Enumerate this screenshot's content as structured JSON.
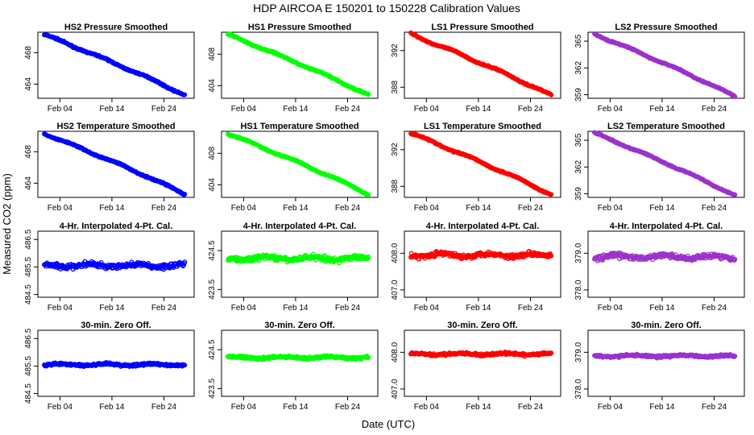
{
  "title": "HDP    AIRCOA E    150201 to 150228    Calibration Values",
  "xlabel": "Date (UTC)",
  "ylabel": "Measured CO2 (ppm)",
  "x_ticks": [
    "Feb 04",
    "Feb 14",
    "Feb 24"
  ],
  "colors": {
    "HS2": "#0000ff",
    "HS1": "#00ff00",
    "LS1": "#ff0000",
    "LS2": "#9a32cd"
  },
  "chart_data": [
    {
      "type": "scatter",
      "title": "HS2 Pressure Smoothed",
      "color": "HS2",
      "x_range": [
        "2015-02-01",
        "2015-02-28"
      ],
      "yticks": [
        "464",
        "468"
      ],
      "ylim": [
        462.2,
        470.6
      ],
      "y_start": 470.3,
      "y_end": 462.6,
      "noise": 0.08,
      "jitter": 0.1
    },
    {
      "type": "scatter",
      "title": "HS1 Pressure Smoothed",
      "color": "HS1",
      "x_range": [
        "2015-02-01",
        "2015-02-28"
      ],
      "yticks": [
        "404",
        "408"
      ],
      "ylim": [
        402.4,
        410.8
      ],
      "y_start": 410.5,
      "y_end": 402.8,
      "noise": 0.08,
      "jitter": 0.1
    },
    {
      "type": "scatter",
      "title": "LS1 Pressure Smoothed",
      "color": "LS1",
      "x_range": [
        "2015-02-01",
        "2015-02-28"
      ],
      "yticks": [
        "388",
        "392"
      ],
      "ylim": [
        386.8,
        394.0
      ],
      "y_start": 393.8,
      "y_end": 387.1,
      "noise": 0.07,
      "jitter": 0.1
    },
    {
      "type": "scatter",
      "title": "LS2 Pressure Smoothed",
      "color": "LS2",
      "x_range": [
        "2015-02-01",
        "2015-02-28"
      ],
      "yticks": [
        "359",
        "362",
        "365"
      ],
      "ylim": [
        358.6,
        366.0
      ],
      "y_start": 365.8,
      "y_end": 358.8,
      "noise": 0.06,
      "jitter": 0.08
    },
    {
      "type": "scatter",
      "title": "HS2 Temperature Smoothed",
      "color": "HS2",
      "x_range": [
        "2015-02-01",
        "2015-02-28"
      ],
      "yticks": [
        "464",
        "468"
      ],
      "ylim": [
        462.2,
        470.6
      ],
      "y_start": 470.3,
      "y_end": 462.6,
      "noise": 0.08,
      "jitter": 0.1
    },
    {
      "type": "scatter",
      "title": "HS1 Temperature Smoothed",
      "color": "HS1",
      "x_range": [
        "2015-02-01",
        "2015-02-28"
      ],
      "yticks": [
        "404",
        "408"
      ],
      "ylim": [
        402.4,
        410.8
      ],
      "y_start": 410.5,
      "y_end": 402.8,
      "noise": 0.08,
      "jitter": 0.1
    },
    {
      "type": "scatter",
      "title": "LS1 Temperature Smoothed",
      "color": "LS1",
      "x_range": [
        "2015-02-01",
        "2015-02-28"
      ],
      "yticks": [
        "388",
        "392"
      ],
      "ylim": [
        386.8,
        394.0
      ],
      "y_start": 393.8,
      "y_end": 387.1,
      "noise": 0.07,
      "jitter": 0.1
    },
    {
      "type": "scatter",
      "title": "LS2 Temperature Smoothed",
      "color": "LS2",
      "x_range": [
        "2015-02-01",
        "2015-02-28"
      ],
      "yticks": [
        "359",
        "362",
        "365"
      ],
      "ylim": [
        358.6,
        366.0
      ],
      "y_start": 365.8,
      "y_end": 358.8,
      "noise": 0.06,
      "jitter": 0.08
    },
    {
      "type": "scatter",
      "title": "4-Hr. Interpolated 4-Pt. Cal.",
      "color": "HS2",
      "x_range": [
        "2015-02-01",
        "2015-02-28"
      ],
      "yticks": [
        "484.5",
        "485.5",
        "486.5"
      ],
      "ylim": [
        484.4,
        486.8
      ],
      "y_start": 485.55,
      "y_end": 485.55,
      "noise": 0.09,
      "jitter": 0.05
    },
    {
      "type": "scatter",
      "title": "4-Hr. Interpolated 4-Pt. Cal.",
      "color": "HS1",
      "x_range": [
        "2015-02-01",
        "2015-02-28"
      ],
      "yticks": [
        "423.5",
        "424.5"
      ],
      "ylim": [
        423.3,
        425.0
      ],
      "y_start": 424.3,
      "y_end": 424.3,
      "noise": 0.06,
      "jitter": 0.04
    },
    {
      "type": "scatter",
      "title": "4-Hr. Interpolated 4-Pt. Cal.",
      "color": "LS1",
      "x_range": [
        "2015-02-01",
        "2015-02-28"
      ],
      "yticks": [
        "407.0",
        "408.0"
      ],
      "ylim": [
        406.8,
        408.6
      ],
      "y_start": 407.95,
      "y_end": 407.95,
      "noise": 0.06,
      "jitter": 0.04
    },
    {
      "type": "scatter",
      "title": "4-Hr. Interpolated 4-Pt. Cal.",
      "color": "LS2",
      "x_range": [
        "2015-02-01",
        "2015-02-28"
      ],
      "yticks": [
        "378.0",
        "379.0"
      ],
      "ylim": [
        377.8,
        379.6
      ],
      "y_start": 378.9,
      "y_end": 378.9,
      "noise": 0.07,
      "jitter": 0.04
    },
    {
      "type": "scatter",
      "title": "30-min. Zero Off.",
      "color": "HS2",
      "x_range": [
        "2015-02-01",
        "2015-02-28"
      ],
      "yticks": [
        "484.5",
        "485.5",
        "486.5"
      ],
      "ylim": [
        484.4,
        486.8
      ],
      "y_start": 485.55,
      "y_end": 485.55,
      "noise": 0.04,
      "jitter": 0.03
    },
    {
      "type": "scatter",
      "title": "30-min. Zero Off.",
      "color": "HS1",
      "x_range": [
        "2015-02-01",
        "2015-02-28"
      ],
      "yticks": [
        "423.5",
        "424.5"
      ],
      "ylim": [
        423.3,
        425.0
      ],
      "y_start": 424.3,
      "y_end": 424.3,
      "noise": 0.03,
      "jitter": 0.02
    },
    {
      "type": "scatter",
      "title": "30-min. Zero Off.",
      "color": "LS1",
      "x_range": [
        "2015-02-01",
        "2015-02-28"
      ],
      "yticks": [
        "407.0",
        "408.0"
      ],
      "ylim": [
        406.8,
        408.6
      ],
      "y_start": 407.95,
      "y_end": 407.95,
      "noise": 0.03,
      "jitter": 0.02
    },
    {
      "type": "scatter",
      "title": "30-min. Zero Off.",
      "color": "LS2",
      "x_range": [
        "2015-02-01",
        "2015-02-28"
      ],
      "yticks": [
        "378.0",
        "379.0"
      ],
      "ylim": [
        377.8,
        379.6
      ],
      "y_start": 378.9,
      "y_end": 378.9,
      "noise": 0.03,
      "jitter": 0.02
    }
  ]
}
